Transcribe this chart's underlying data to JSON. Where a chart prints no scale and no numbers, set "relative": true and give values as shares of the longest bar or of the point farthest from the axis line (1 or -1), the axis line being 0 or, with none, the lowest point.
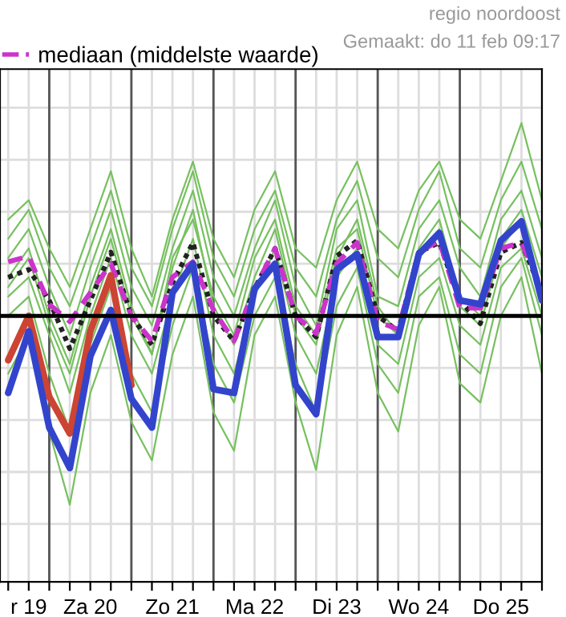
{
  "chart_data": {
    "type": "line",
    "relative": true,
    "grid": true,
    "legend": "top left",
    "annotations": [
      "regio noordoost",
      "Gemaakt: do 11 feb 09:17"
    ],
    "categories": [
      null,
      "r 19",
      null,
      null,
      "Za 20",
      null,
      null,
      null,
      "Zo 21",
      null,
      null,
      null,
      "Ma 22",
      null,
      null,
      null,
      "Di 23",
      null,
      null,
      null,
      "Wo 24",
      null,
      null,
      null,
      "Do 25",
      null,
      null
    ],
    "series": [
      {
        "color": "#77c060",
        "values": [
          0.5,
          0.6,
          0.35,
          0.15,
          0.45,
          0.75,
          0.35,
          0.1,
          0.5,
          0.8,
          0.4,
          0.2,
          0.55,
          0.75,
          0.35,
          0.25,
          0.6,
          0.8,
          0.45,
          0.35,
          0.65,
          0.8,
          0.5,
          0.4,
          0.7,
          1.0,
          0.6
        ]
      },
      {
        "color": "#77c060",
        "values": [
          -0.3,
          -0.1,
          -0.6,
          -0.98,
          -0.4,
          -0.1,
          -0.55,
          -0.75,
          -0.2,
          0.1,
          -0.5,
          -0.7,
          -0.1,
          0.1,
          -0.45,
          -0.8,
          -0.1,
          0.15,
          -0.4,
          -0.6,
          -0.05,
          0.15,
          -0.35,
          -0.45,
          0.0,
          0.2,
          -0.3
        ]
      },
      {
        "color": "#77c060",
        "values": [
          0.3,
          0.45,
          0.15,
          -0.1,
          0.25,
          0.55,
          0.15,
          -0.05,
          0.35,
          0.65,
          0.2,
          0.0,
          0.35,
          0.6,
          0.15,
          -0.05,
          0.45,
          0.6,
          0.1,
          0.05,
          0.45,
          0.6,
          0.25,
          0.1,
          0.5,
          0.65,
          0.3
        ]
      },
      {
        "color": "#77c060",
        "values": [
          0.1,
          0.2,
          -0.1,
          -0.4,
          0.0,
          0.3,
          -0.1,
          -0.3,
          0.1,
          0.4,
          -0.1,
          -0.3,
          0.1,
          0.35,
          -0.1,
          -0.3,
          0.2,
          0.35,
          -0.15,
          -0.25,
          0.2,
          0.3,
          -0.05,
          -0.15,
          0.25,
          0.35,
          0.0
        ]
      },
      {
        "color": "#77c060",
        "values": [
          0.2,
          0.35,
          0.0,
          -0.25,
          0.15,
          0.45,
          0.05,
          -0.2,
          0.25,
          0.55,
          0.05,
          -0.15,
          0.2,
          0.45,
          0.0,
          -0.15,
          0.3,
          0.5,
          0.05,
          -0.1,
          0.35,
          0.5,
          0.1,
          0.0,
          0.4,
          0.55,
          0.2
        ]
      },
      {
        "color": "#77c060",
        "values": [
          0.0,
          0.1,
          -0.3,
          -0.6,
          -0.15,
          0.15,
          -0.3,
          -0.5,
          -0.05,
          0.25,
          -0.25,
          -0.45,
          0.0,
          0.2,
          -0.25,
          -0.5,
          0.05,
          0.25,
          -0.25,
          -0.4,
          0.1,
          0.2,
          -0.2,
          -0.3,
          0.15,
          0.3,
          -0.1
        ]
      },
      {
        "color": "#77c060",
        "values": [
          0.4,
          0.55,
          0.25,
          0.05,
          0.35,
          0.65,
          0.25,
          0.05,
          0.45,
          0.75,
          0.3,
          0.1,
          0.45,
          0.65,
          0.25,
          0.1,
          0.5,
          0.7,
          0.3,
          0.2,
          0.55,
          0.75,
          0.35,
          0.25,
          0.6,
          0.8,
          0.45
        ]
      },
      {
        "color": "#77c060",
        "values": [
          0.15,
          0.3,
          -0.05,
          -0.3,
          0.1,
          0.4,
          0.0,
          -0.2,
          0.3,
          0.5,
          0.1,
          -0.1,
          0.3,
          0.5,
          0.05,
          -0.1,
          0.35,
          0.45,
          0.0,
          -0.1,
          0.3,
          0.45,
          0.05,
          -0.05,
          0.35,
          0.5,
          0.1
        ]
      },
      {
        "color": "#222222",
        "line_style": "dotted",
        "values": [
          0.2,
          0.24,
          0.08,
          -0.17,
          0.08,
          0.33,
          0,
          -0.15,
          0.17,
          0.38,
          0,
          -0.13,
          0.14,
          0.35,
          0,
          -0.11,
          0.31,
          0.39,
          0,
          -0.08,
          0.33,
          0.38,
          0.08,
          -0.04,
          0.33,
          0.38,
          0.12
        ]
      },
      {
        "name": "mediaan (middelste waarde)",
        "color": "#cc33cc",
        "line_style": "dashed",
        "values": [
          0.28,
          0.31,
          0.06,
          -0.03,
          0.12,
          0.27,
          0,
          -0.13,
          0.2,
          0.28,
          0.03,
          -0.13,
          0.14,
          0.35,
          0,
          -0.09,
          0.27,
          0.38,
          -0.03,
          -0.07,
          0.33,
          0.39,
          0.04,
          0.04,
          0.35,
          0.38,
          0.14
        ]
      },
      {
        "color": "#cc4433",
        "values": [
          -0.23,
          0.0,
          -0.42,
          -0.61,
          -0.08,
          0.21,
          -0.36,
          null,
          null,
          null,
          null,
          null,
          null,
          null,
          null,
          null,
          null,
          null,
          null,
          null,
          null,
          null,
          null,
          null,
          null,
          null,
          null
        ]
      },
      {
        "color": "#3344cc",
        "values": [
          -0.4,
          -0.08,
          -0.58,
          -0.79,
          -0.21,
          0.03,
          -0.43,
          -0.58,
          0.12,
          0.27,
          -0.38,
          -0.4,
          0.14,
          0.27,
          -0.36,
          -0.51,
          0.24,
          0.32,
          -0.11,
          -0.11,
          0.32,
          0.43,
          0.08,
          0.06,
          0.39,
          0.49,
          0.08
        ]
      }
    ]
  }
}
